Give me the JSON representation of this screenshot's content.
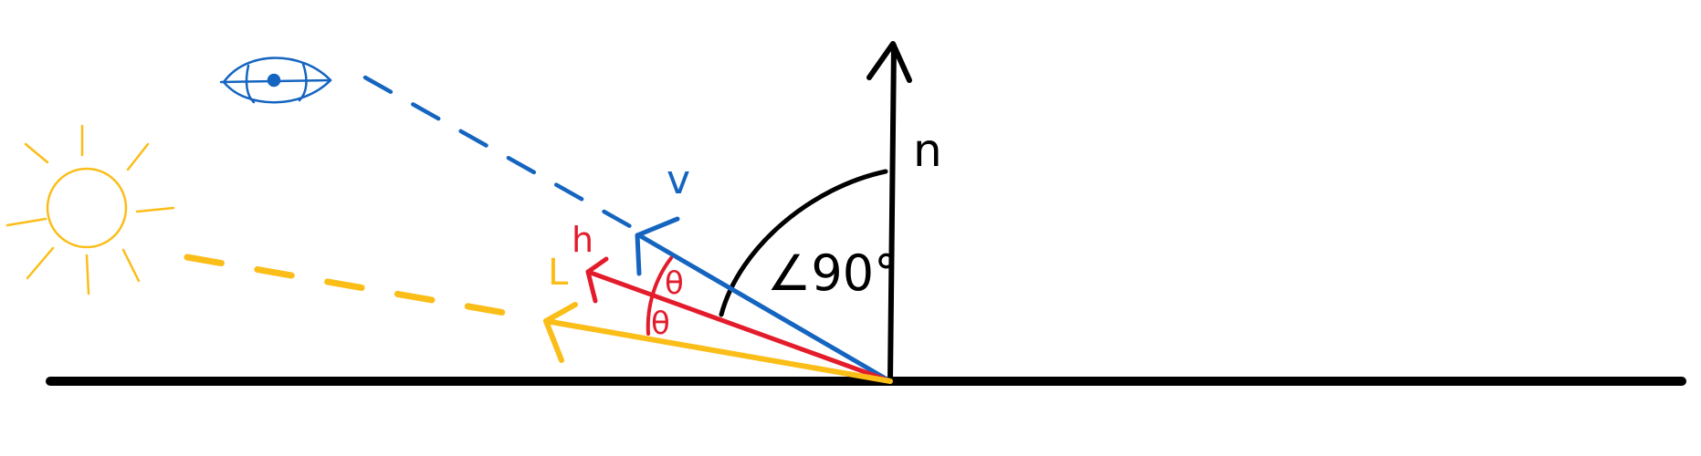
{
  "labels": {
    "normal": "n",
    "view": "v",
    "half": "h",
    "light": "L",
    "theta_upper": "θ",
    "theta_lower": "θ",
    "angle": "∠90°"
  },
  "colors": {
    "surface": "#000000",
    "normal": "#000000",
    "view": "#1565c0",
    "half": "#e31c2b",
    "light": "#fbbd18",
    "angle_arc": "#000000",
    "background": "#ffffff"
  },
  "icons": {
    "eye": "eye-icon",
    "sun": "sun-icon"
  }
}
